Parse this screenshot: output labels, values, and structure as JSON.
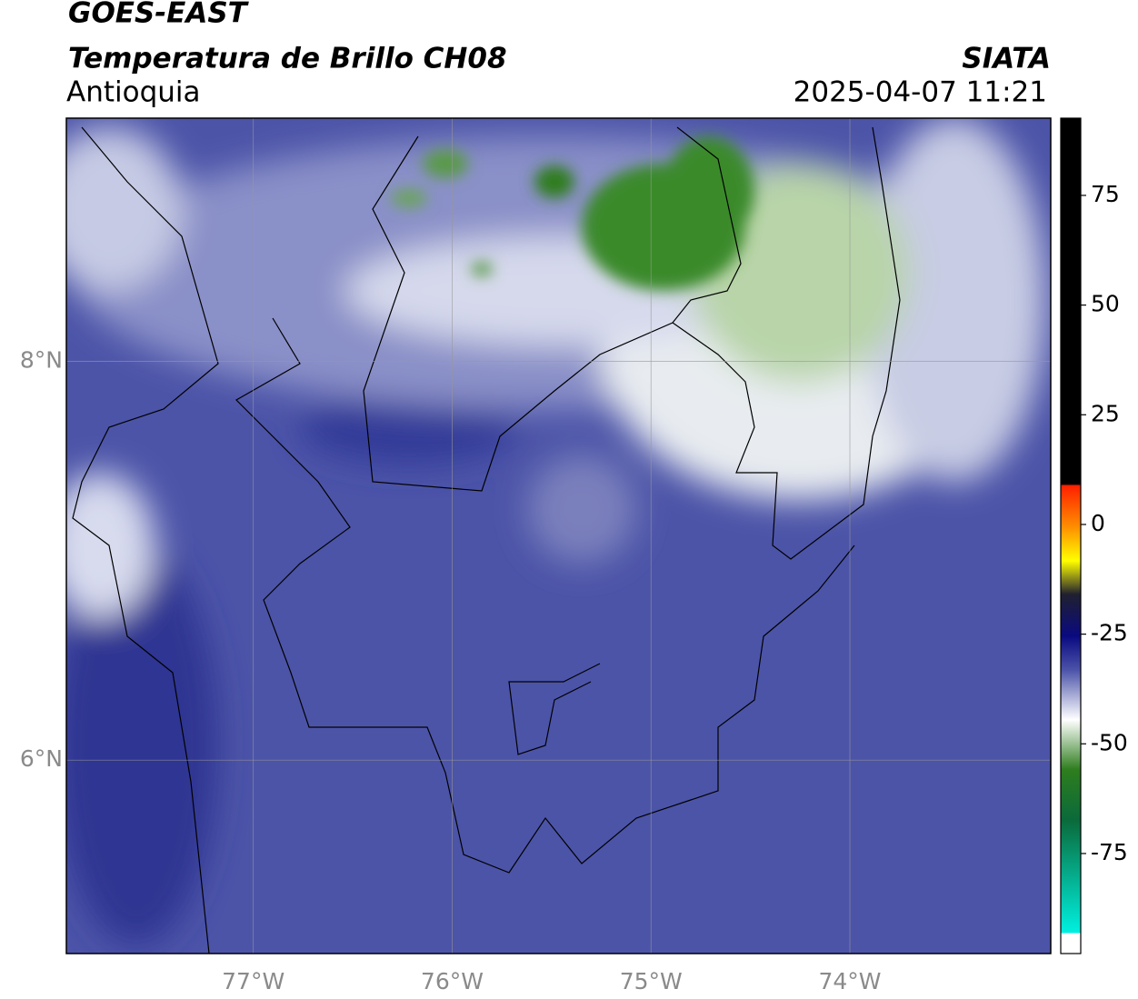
{
  "title": "GOES-EAST",
  "subtitle": "Temperatura de Brillo CH08",
  "region": "Antioquia",
  "source": "SIATA",
  "timestamp": "2025-04-07 11:21",
  "map": {
    "lonlim": [
      -77.94,
      -72.99
    ],
    "latlim": [
      5.03,
      9.22
    ],
    "lon_ticks": [
      {
        "value": -77,
        "label": "77°W"
      },
      {
        "value": -76,
        "label": "76°W"
      },
      {
        "value": -75,
        "label": "75°W"
      },
      {
        "value": -74,
        "label": "74°W"
      }
    ],
    "lat_ticks": [
      {
        "value": 8,
        "label": "8°N"
      },
      {
        "value": 6,
        "label": "6°N"
      }
    ]
  },
  "colorbar": {
    "lim": [
      -97.8,
      92.6
    ],
    "ticks": [
      75,
      50,
      25,
      0,
      -25,
      -50,
      -75
    ]
  }
}
